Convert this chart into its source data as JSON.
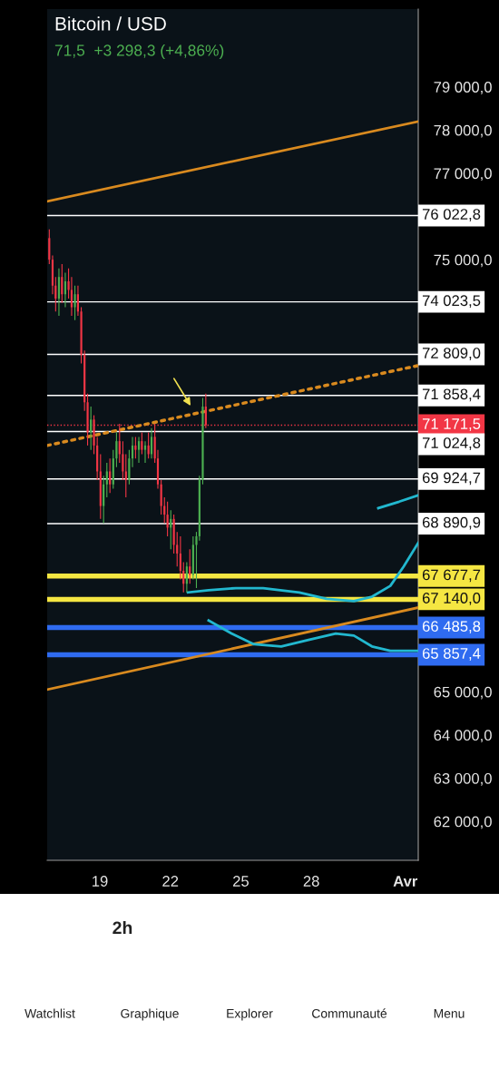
{
  "chart_data": {
    "type": "candlestick",
    "title": "Bitcoin / USD",
    "subtitle": "71,5  +3 298,3 (+4,86%)",
    "x": [
      16.85,
      16.99,
      17.12,
      17.26,
      17.39,
      17.53,
      17.67,
      17.8,
      17.94,
      18.07,
      18.21,
      18.35,
      18.48,
      18.62,
      18.75,
      18.89,
      19.03,
      19.16,
      19.3,
      19.43,
      19.57,
      19.71,
      19.84,
      19.98,
      20.11,
      20.25,
      20.39,
      20.52,
      20.66,
      20.79,
      20.93,
      21.07,
      21.2,
      21.34,
      21.47,
      21.61,
      21.75,
      21.88,
      22.02,
      22.15,
      22.29,
      22.43,
      22.56,
      22.7,
      22.83,
      22.97,
      23.11,
      23.24,
      23.38,
      23.51
    ],
    "ohlc": [
      [
        75500,
        75700,
        74900,
        75000
      ],
      [
        75000,
        75100,
        74200,
        74400
      ],
      [
        74400,
        74600,
        73800,
        74100
      ],
      [
        74100,
        74800,
        73700,
        74600
      ],
      [
        74600,
        74900,
        74000,
        74200
      ],
      [
        74200,
        74700,
        73900,
        74500
      ],
      [
        74500,
        74800,
        74100,
        74300
      ],
      [
        74300,
        74600,
        73700,
        73900
      ],
      [
        73900,
        74400,
        73600,
        74200
      ],
      [
        74200,
        74400,
        73700,
        73800
      ],
      [
        73800,
        73900,
        72600,
        72800
      ],
      [
        72800,
        72900,
        71500,
        71700
      ],
      [
        71700,
        71900,
        70700,
        71000
      ],
      [
        71000,
        71600,
        70600,
        71300
      ],
      [
        71300,
        71400,
        70500,
        70700
      ],
      [
        70700,
        70900,
        69900,
        70100
      ],
      [
        70100,
        70500,
        69000,
        69300
      ],
      [
        69300,
        70000,
        68900,
        69800
      ],
      [
        69800,
        70300,
        69500,
        70100
      ],
      [
        70100,
        70400,
        69600,
        69800
      ],
      [
        69800,
        70600,
        69700,
        70400
      ],
      [
        70400,
        71000,
        70200,
        70800
      ],
      [
        70800,
        71200,
        70300,
        70500
      ],
      [
        70500,
        70800,
        69900,
        70100
      ],
      [
        70100,
        70500,
        69500,
        69900
      ],
      [
        69900,
        70600,
        69800,
        70400
      ],
      [
        70400,
        70900,
        70200,
        70700
      ],
      [
        70700,
        70900,
        70400,
        70600
      ],
      [
        70600,
        70900,
        70300,
        70800
      ],
      [
        70800,
        71000,
        70500,
        70600
      ],
      [
        70600,
        70800,
        70300,
        70700
      ],
      [
        70700,
        71000,
        70400,
        70500
      ],
      [
        70500,
        71100,
        70400,
        70900
      ],
      [
        70900,
        71200,
        70300,
        70400
      ],
      [
        70400,
        70600,
        69700,
        69800
      ],
      [
        69800,
        69900,
        69100,
        69300
      ],
      [
        69300,
        69500,
        68900,
        69100
      ],
      [
        69100,
        69400,
        68600,
        68800
      ],
      [
        68800,
        69200,
        68300,
        69000
      ],
      [
        69000,
        69100,
        68200,
        68400
      ],
      [
        68400,
        68700,
        67900,
        68200
      ],
      [
        68200,
        68600,
        67600,
        67800
      ],
      [
        67800,
        68000,
        67300,
        67500
      ],
      [
        67500,
        68000,
        67300,
        67900
      ],
      [
        67900,
        68300,
        67500,
        67700
      ],
      [
        67700,
        68600,
        67600,
        68400
      ],
      [
        68400,
        68700,
        67400,
        68600
      ],
      [
        68600,
        70000,
        68500,
        69900
      ],
      [
        69900,
        71800,
        69800,
        71600
      ],
      [
        71600,
        71900,
        71100,
        71171.5
      ]
    ],
    "series": [
      {
        "type": "line",
        "color": "#d98a1f",
        "line_style": "solid",
        "x": [
          16.76,
          32.55
        ],
        "values": [
          76350,
          78200
        ]
      },
      {
        "type": "line",
        "color": "#d98a1f",
        "line_style": "solid",
        "x": [
          16.76,
          32.55
        ],
        "values": [
          65050,
          66950
        ]
      },
      {
        "type": "line",
        "color": "#d98a1f",
        "line_style": "dotted",
        "x": [
          16.76,
          32.55
        ],
        "values": [
          70700,
          72550
        ]
      },
      {
        "type": "line",
        "color": "#22b8cf",
        "line_style": "solid",
        "x": [
          22.75,
          23.63,
          24.79,
          25.95,
          27.49,
          28.65,
          29.81,
          30.58,
          31.36,
          31.93,
          32.55
        ],
        "values": [
          67300,
          67350,
          67400,
          67400,
          67300,
          67150,
          67100,
          67200,
          67450,
          67900,
          68450
        ]
      },
      {
        "type": "line",
        "color": "#22b8cf",
        "line_style": "solid",
        "x": [
          23.63,
          24.6,
          25.56,
          26.72,
          27.88,
          29.04,
          29.81,
          30.58,
          31.36,
          32.55
        ],
        "values": [
          66650,
          66350,
          66100,
          66050,
          66200,
          66350,
          66300,
          66050,
          65950,
          65950
        ]
      },
      {
        "type": "line",
        "color": "#22b8cf",
        "line_style": "solid",
        "x": [
          30.85,
          31.74,
          32.55
        ],
        "values": [
          69250,
          69400,
          69550
        ]
      }
    ],
    "ref_lines": [
      {
        "axis": "y",
        "value": 76022.8,
        "label": "76 022,8",
        "color": "#ffffff",
        "line_style": "solid"
      },
      {
        "axis": "y",
        "value": 74023.5,
        "label": "74 023,5",
        "color": "#ffffff",
        "line_style": "solid"
      },
      {
        "axis": "y",
        "value": 72809.0,
        "label": "72 809,0",
        "color": "#ffffff",
        "line_style": "solid"
      },
      {
        "axis": "y",
        "value": 71858.4,
        "label": "71 858,4",
        "color": "#ffffff",
        "line_style": "solid"
      },
      {
        "axis": "y",
        "value": 71171.5,
        "label": "71 171,5",
        "color": "#f23645",
        "line_style": "dotted"
      },
      {
        "axis": "y",
        "value": 71024.8,
        "label": "71 024,8",
        "color": "#ffffff",
        "line_style": "solid"
      },
      {
        "axis": "y",
        "value": 69924.7,
        "label": "69 924,7",
        "color": "#ffffff",
        "line_style": "solid"
      },
      {
        "axis": "y",
        "value": 68890.9,
        "label": "68 890,9",
        "color": "#ffffff",
        "line_style": "solid"
      },
      {
        "axis": "y",
        "value": 67677.7,
        "label": "67 677,7",
        "color": "#f5e642",
        "line_style": "solid"
      },
      {
        "axis": "y",
        "value": 67140.0,
        "label": "67 140,0",
        "color": "#f5e642",
        "line_style": "solid"
      },
      {
        "axis": "y",
        "value": 66485.8,
        "label": "66 485,8",
        "color": "#2f6bf0",
        "line_style": "solid"
      },
      {
        "axis": "y",
        "value": 65857.4,
        "label": "65 857,4",
        "color": "#2f6bf0",
        "line_style": "solid"
      }
    ],
    "xlim": [
      16.76,
      32.55
    ],
    "xticks": [
      {
        "value": 19,
        "label": "19"
      },
      {
        "value": 22,
        "label": "22"
      },
      {
        "value": 25,
        "label": "25"
      },
      {
        "value": 28,
        "label": "28"
      },
      {
        "value": 32,
        "label": "Avr"
      }
    ],
    "ylim": [
      61100,
      80800
    ],
    "yticks": [
      {
        "value": 62000,
        "label": "62 000,0"
      },
      {
        "value": 63000,
        "label": "63 000,0"
      },
      {
        "value": 64000,
        "label": "64 000,0"
      },
      {
        "value": 65000,
        "label": "65 000,0"
      },
      {
        "value": 75000,
        "label": "75 000,0"
      },
      {
        "value": 77000,
        "label": "77 000,0"
      },
      {
        "value": 78000,
        "label": "78 000,0"
      },
      {
        "value": 79000,
        "label": "79 000,0"
      }
    ],
    "grid": false,
    "legend": false,
    "annotations": [
      "2h",
      "Watchlist",
      "Graphique",
      "Explorer",
      "Communauté",
      "Menu"
    ]
  }
}
